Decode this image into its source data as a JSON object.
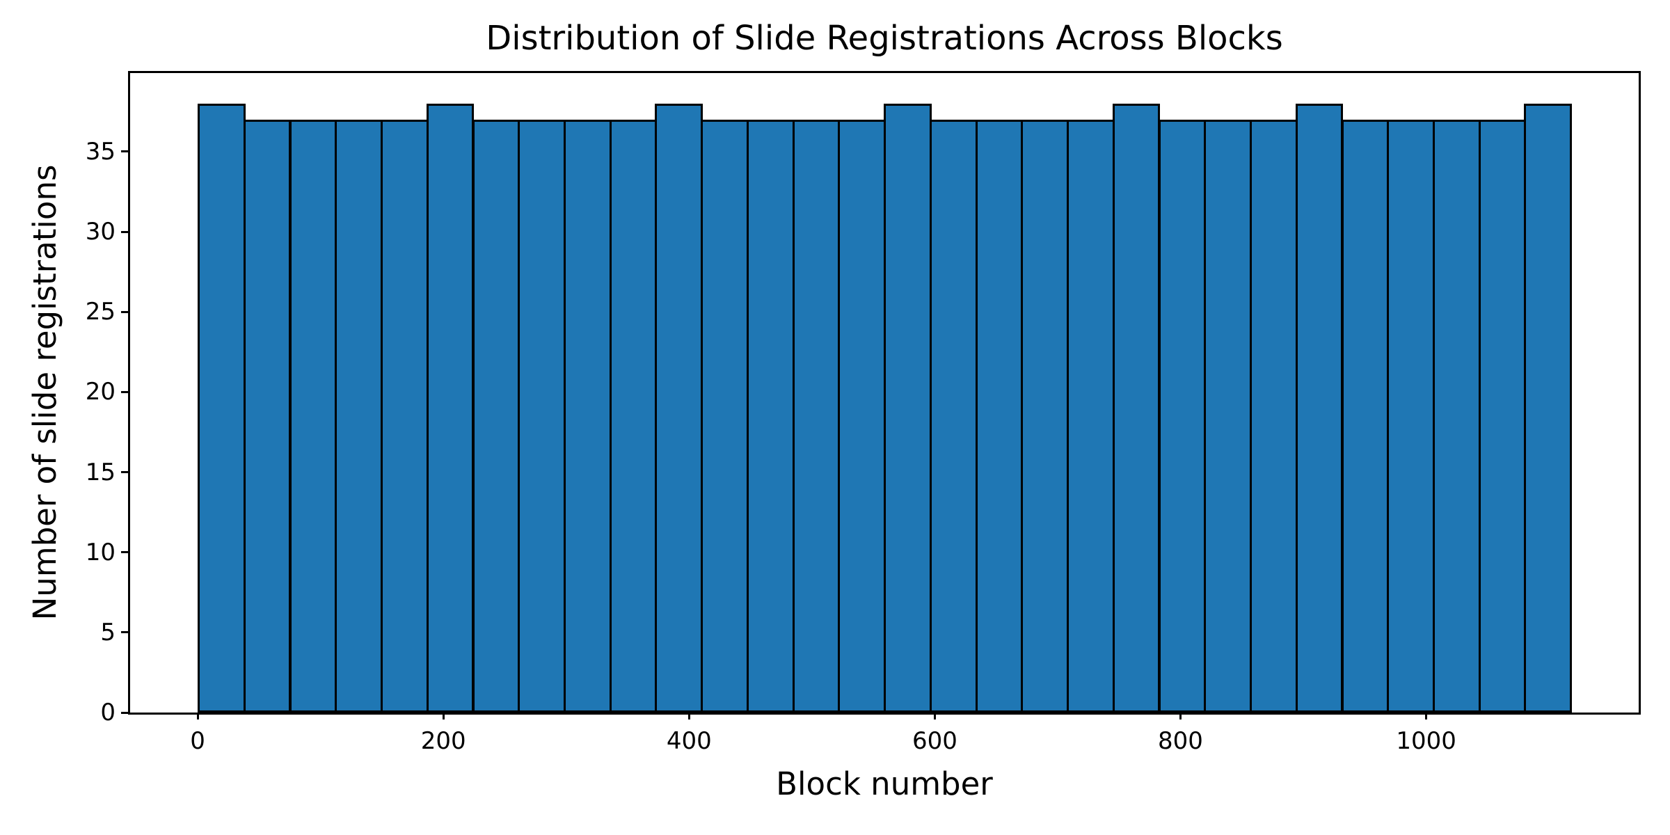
{
  "chart_data": {
    "type": "bar",
    "subtype": "histogram",
    "title": "Distribution of Slide Registrations Across Blocks",
    "xlabel": "Block number",
    "ylabel": "Number of slide registrations",
    "n_bins": 30,
    "bin_start": 0,
    "bin_end": 1117,
    "values": [
      38,
      37,
      37,
      37,
      37,
      38,
      37,
      37,
      37,
      37,
      38,
      37,
      37,
      37,
      37,
      38,
      37,
      37,
      37,
      37,
      38,
      37,
      37,
      37,
      38,
      37,
      37,
      37,
      37,
      38
    ],
    "xticks": [
      0,
      200,
      400,
      600,
      800,
      1000
    ],
    "yticks": [
      0,
      5,
      10,
      15,
      20,
      25,
      30,
      35
    ],
    "xlim": [
      -55,
      1173
    ],
    "ylim": [
      0,
      39.9
    ],
    "grid": false,
    "legend_position": "none",
    "bar_color": "#1f77b4",
    "bar_edge_color": "#000000",
    "background_color": "#ffffff",
    "text_color": "#000000"
  }
}
